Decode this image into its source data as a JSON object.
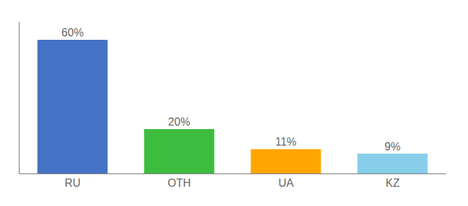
{
  "chart_data": {
    "type": "bar",
    "categories": [
      "RU",
      "OTH",
      "UA",
      "KZ"
    ],
    "values": [
      60,
      20,
      11,
      9
    ],
    "value_labels": [
      "60%",
      "20%",
      "11%",
      "9%"
    ],
    "colors": [
      "#4472C4",
      "#3DBD3D",
      "#FFA500",
      "#87CEEB"
    ],
    "ylim": [
      0,
      68
    ],
    "data_labels": true,
    "tick_labels": "x",
    "grid": false
  }
}
